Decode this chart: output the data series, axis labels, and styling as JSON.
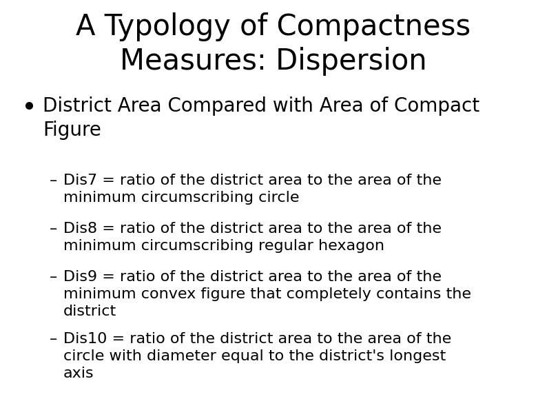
{
  "title_line1": "A Typology of Compactness",
  "title_line2": "Measures: Dispersion",
  "title_fontsize": 30,
  "background_color": "#ffffff",
  "text_color": "#000000",
  "bullet_text": "District Area Compared with Area of Compact\nFigure",
  "bullet_fontsize": 20,
  "sub_bullets": [
    "Dis7 = ratio of the district area to the area of the\nminimum circumscribing circle",
    "Dis8 = ratio of the district area to the area of the\nminimum circumscribing regular hexagon",
    "Dis9 = ratio of the district area to the area of the\nminimum convex figure that completely contains the\ndistrict",
    "Dis10 = ratio of the district area to the area of the\ncircle with diameter equal to the district's longest\naxis"
  ],
  "sub_bullet_fontsize": 16,
  "fig_width": 7.94,
  "fig_height": 5.95,
  "dpi": 100
}
